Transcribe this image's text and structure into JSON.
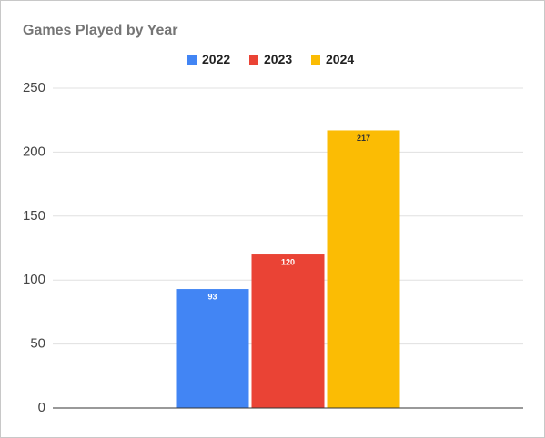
{
  "chart_data": {
    "type": "bar",
    "title": "Games Played by Year",
    "categories": [
      null
    ],
    "series": [
      {
        "name": "2022",
        "color": "#4285f4",
        "values": [
          93
        ]
      },
      {
        "name": "2023",
        "color": "#ea4335",
        "values": [
          120
        ]
      },
      {
        "name": "2024",
        "color": "#fbbc04",
        "values": [
          217
        ]
      }
    ],
    "ylim": [
      0,
      250
    ],
    "yticks": [
      0,
      50,
      100,
      150,
      200,
      250
    ],
    "grid": true,
    "legend": "top"
  }
}
